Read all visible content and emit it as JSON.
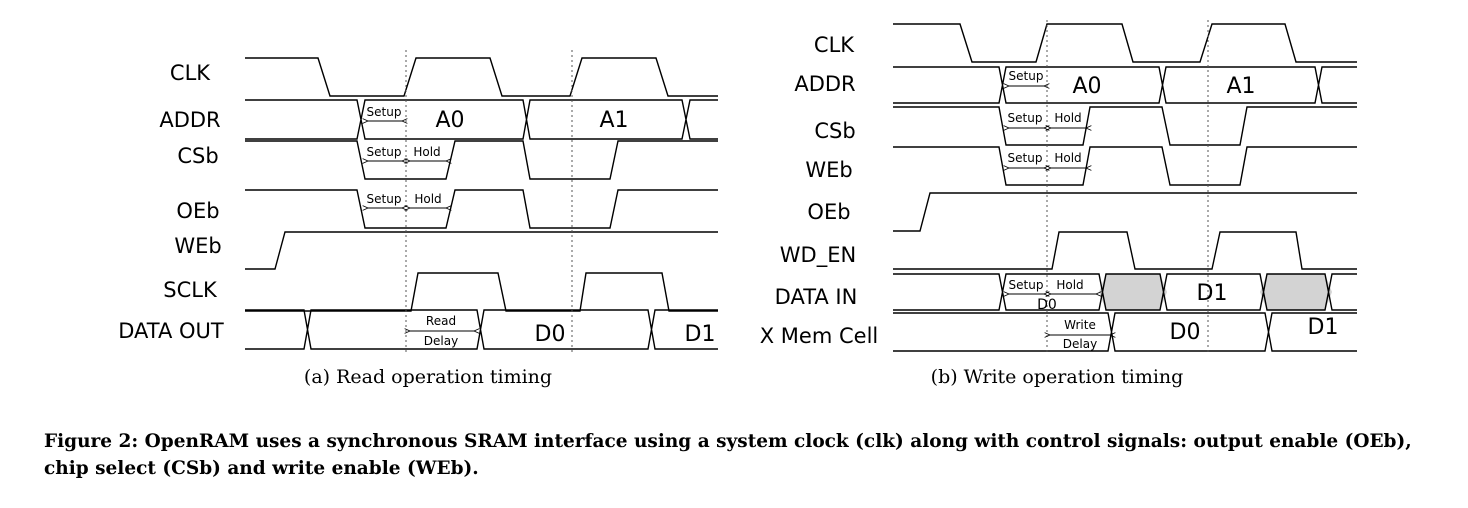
{
  "read_diagram": {
    "signals": [
      "CLK",
      "ADDR",
      "CSb",
      "OEb",
      "WEb",
      "SCLK",
      "DATA OUT"
    ],
    "addr_values": [
      "A0",
      "A1"
    ],
    "data_out_values": [
      "D0",
      "D1"
    ],
    "annotations": {
      "setup": "Setup",
      "hold": "Hold",
      "read_delay_line1": "Read",
      "read_delay_line2": "Delay"
    },
    "subcaption": "(a) Read operation timing"
  },
  "write_diagram": {
    "signals": [
      "CLK",
      "ADDR",
      "CSb",
      "WEb",
      "OEb",
      "WD_EN",
      "DATA IN",
      "X Mem Cell"
    ],
    "addr_values": [
      "A0",
      "A1"
    ],
    "data_in_values": [
      "D0",
      "D1"
    ],
    "mem_cell_values": [
      "D0",
      "D1"
    ],
    "annotations": {
      "setup": "Setup",
      "hold": "Hold",
      "write_delay_line1": "Write",
      "write_delay_line2": "Delay"
    },
    "subcaption": "(b) Write operation timing"
  },
  "caption": "Figure 2: OpenRAM uses a synchronous SRAM interface using a system clock (clk) along with control signals: output enable (OEb), chip select (CSb) and write enable (WEb)."
}
